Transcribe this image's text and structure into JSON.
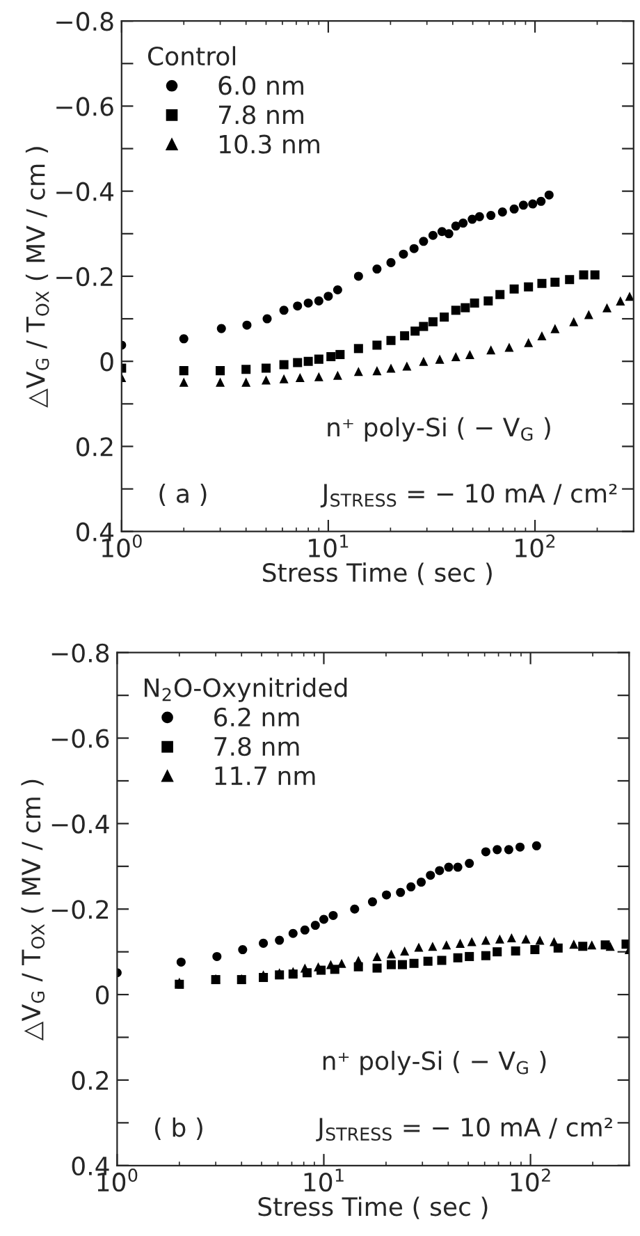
{
  "chart_data": [
    {
      "type": "scatter",
      "xlabel": "Stress Time ( sec )",
      "ylabel": "△V$_{G}$ / T$_{OX}$ ( MV / cm )",
      "legend_title": "Control",
      "legend": "top left",
      "log": "x",
      "xlim": [
        1,
        300
      ],
      "xticks": [
        {
          "value": 1,
          "label": "10$^{0}$"
        },
        {
          "value": 10,
          "label": "10$^{1}$"
        },
        {
          "value": 100,
          "label": "10$^{2}$"
        }
      ],
      "ylim": [
        0.4,
        -0.8
      ],
      "yticks": [
        {
          "value": -0.8,
          "label": "−0.8"
        },
        {
          "value": -0.7,
          "label": null
        },
        {
          "value": -0.6,
          "label": "−0.6"
        },
        {
          "value": -0.5,
          "label": null
        },
        {
          "value": -0.4,
          "label": "−0.4"
        },
        {
          "value": -0.3,
          "label": null
        },
        {
          "value": -0.2,
          "label": "−0.2"
        },
        {
          "value": -0.1,
          "label": null
        },
        {
          "value": 0,
          "label": "0"
        },
        {
          "value": 0.1,
          "label": null
        },
        {
          "value": 0.2,
          "label": "0.2"
        },
        {
          "value": 0.3,
          "label": null
        },
        {
          "value": 0.4,
          "label": "0.4"
        }
      ],
      "annotations": [
        "n⁺ poly-Si ( − V$_{G}$ )",
        "( a )",
        "J$_{STRESS}$ = − 10 mA / cm²"
      ],
      "series": [
        {
          "name": "6.0 nm",
          "color": "#000000",
          "marker": "circle",
          "x": [
            1,
            2,
            3.04,
            4.04,
            5.06,
            6.1,
            7.1,
            8.0,
            9.0,
            10,
            11.1,
            14.0,
            17.2,
            20.1,
            23.1,
            26.0,
            28.9,
            32.1,
            35.5,
            38.3,
            41.4,
            44.9,
            49.7,
            53.9,
            61.2,
            69.6,
            79.3,
            87.9,
            97.5,
            107,
            117
          ],
          "values": [
            -0.038,
            -0.053,
            -0.077,
            -0.085,
            -0.1,
            -0.12,
            -0.13,
            -0.137,
            -0.142,
            -0.153,
            -0.168,
            -0.2,
            -0.217,
            -0.232,
            -0.252,
            -0.265,
            -0.282,
            -0.296,
            -0.305,
            -0.3,
            -0.318,
            -0.325,
            -0.334,
            -0.34,
            -0.343,
            -0.351,
            -0.358,
            -0.367,
            -0.37,
            -0.376,
            -0.391
          ]
        },
        {
          "name": "7.8 nm",
          "color": "#000000",
          "marker": "square",
          "x": [
            1,
            2,
            3,
            4,
            5,
            6.1,
            7.1,
            8,
            9,
            10.3,
            11.4,
            14,
            17.2,
            20.1,
            23.4,
            26.3,
            28.9,
            32.1,
            36.4,
            41.4,
            46,
            51,
            59.4,
            67.7,
            79.3,
            93,
            108,
            125,
            147,
            172,
            195
          ],
          "values": [
            0.016,
            0.022,
            0.022,
            0.019,
            0.016,
            0.008,
            0.003,
            0,
            -0.005,
            -0.011,
            -0.016,
            -0.03,
            -0.038,
            -0.049,
            -0.06,
            -0.071,
            -0.082,
            -0.093,
            -0.104,
            -0.12,
            -0.126,
            -0.137,
            -0.142,
            -0.157,
            -0.17,
            -0.175,
            -0.183,
            -0.186,
            -0.192,
            -0.203,
            -0.203
          ]
        },
        {
          "name": "10.3 nm",
          "color": "#000000",
          "marker": "triangle",
          "x": [
            1,
            2,
            3,
            4,
            5,
            6.1,
            7.3,
            9,
            11.1,
            14,
            17.2,
            20.1,
            24,
            28.9,
            34.6,
            41.4,
            48.4,
            61.2,
            75,
            93,
            108,
            125,
            154,
            182,
            223,
            259,
            287
          ],
          "values": [
            0.038,
            0.049,
            0.049,
            0.049,
            0.044,
            0.041,
            0.038,
            0.036,
            0.033,
            0.024,
            0.022,
            0.016,
            0.011,
            0,
            -0.005,
            -0.011,
            -0.016,
            -0.027,
            -0.033,
            -0.044,
            -0.06,
            -0.077,
            -0.093,
            -0.11,
            -0.126,
            -0.142,
            -0.153
          ]
        }
      ]
    },
    {
      "type": "scatter",
      "xlabel": "Stress Time ( sec )",
      "ylabel": "△V$_{G}$ / T$_{OX}$ ( MV / cm )",
      "legend_title": "N$_{2}$O-Oxynitrided",
      "legend": "top left",
      "log": "x",
      "xlim": [
        1,
        300
      ],
      "xticks": [
        {
          "value": 1,
          "label": "10$^{0}$"
        },
        {
          "value": 10,
          "label": "10$^{1}$"
        },
        {
          "value": 100,
          "label": "10$^{2}$"
        }
      ],
      "ylim": [
        0.4,
        -0.8
      ],
      "yticks": [
        {
          "value": -0.8,
          "label": "−0.8"
        },
        {
          "value": -0.7,
          "label": null
        },
        {
          "value": -0.6,
          "label": "−0.6"
        },
        {
          "value": -0.5,
          "label": null
        },
        {
          "value": -0.4,
          "label": "−0.4"
        },
        {
          "value": -0.3,
          "label": null
        },
        {
          "value": -0.2,
          "label": "−0.2"
        },
        {
          "value": -0.1,
          "label": null
        },
        {
          "value": 0,
          "label": "0"
        },
        {
          "value": 0.1,
          "label": null
        },
        {
          "value": 0.2,
          "label": "0.2"
        },
        {
          "value": 0.3,
          "label": null
        },
        {
          "value": 0.4,
          "label": "0.4"
        }
      ],
      "annotations": [
        "n⁺ poly-Si ( − V$_{G}$ )",
        "( b )",
        "J$_{STRESS}$ = − 10 mA / cm²"
      ],
      "series": [
        {
          "name": "6.2 nm",
          "color": "#000000",
          "marker": "circle",
          "x": [
            1,
            2.04,
            3.04,
            4.05,
            5.1,
            6.1,
            7.1,
            8.1,
            9.1,
            10,
            11.1,
            14.1,
            17.2,
            20.1,
            23.5,
            26.4,
            29.6,
            32.8,
            36.3,
            40.2,
            44.5,
            50.6,
            60.8,
            69,
            78.5,
            89,
            107
          ],
          "values": [
            -0.051,
            -0.076,
            -0.089,
            -0.105,
            -0.12,
            -0.127,
            -0.143,
            -0.151,
            -0.162,
            -0.176,
            -0.185,
            -0.2,
            -0.217,
            -0.233,
            -0.239,
            -0.252,
            -0.263,
            -0.279,
            -0.29,
            -0.298,
            -0.298,
            -0.307,
            -0.334,
            -0.339,
            -0.339,
            -0.345,
            -0.348
          ]
        },
        {
          "name": "7.8 nm",
          "color": "#000000",
          "marker": "square",
          "x": [
            2,
            3,
            4,
            5.1,
            6.1,
            7.1,
            8.3,
            9.7,
            11.3,
            14.7,
            18.1,
            21.2,
            24,
            27.3,
            31.9,
            37.2,
            44.5,
            50.6,
            60.8,
            69,
            84.7,
            105,
            136,
            179,
            230,
            290
          ],
          "values": [
            -0.024,
            -0.035,
            -0.035,
            -0.04,
            -0.046,
            -0.048,
            -0.051,
            -0.057,
            -0.059,
            -0.065,
            -0.062,
            -0.07,
            -0.07,
            -0.073,
            -0.078,
            -0.08,
            -0.086,
            -0.089,
            -0.091,
            -0.1,
            -0.102,
            -0.105,
            -0.109,
            -0.113,
            -0.116,
            -0.118
          ]
        },
        {
          "name": "11.7 nm",
          "color": "#000000",
          "marker": "triangle",
          "x": [
            2,
            3,
            4,
            5.1,
            6.1,
            7.1,
            8.1,
            9.4,
            10.8,
            12.2,
            14.7,
            18.1,
            21.2,
            24.6,
            28.8,
            33.6,
            39.2,
            45.7,
            52,
            60.8,
            71,
            81,
            95,
            111,
            130,
            162,
            198,
            243,
            300
          ],
          "values": [
            -0.029,
            -0.037,
            -0.037,
            -0.046,
            -0.051,
            -0.054,
            -0.062,
            -0.065,
            -0.07,
            -0.073,
            -0.08,
            -0.089,
            -0.095,
            -0.102,
            -0.111,
            -0.113,
            -0.116,
            -0.12,
            -0.124,
            -0.127,
            -0.13,
            -0.133,
            -0.13,
            -0.127,
            -0.124,
            -0.118,
            -0.116,
            -0.113,
            -0.105
          ]
        }
      ]
    }
  ]
}
